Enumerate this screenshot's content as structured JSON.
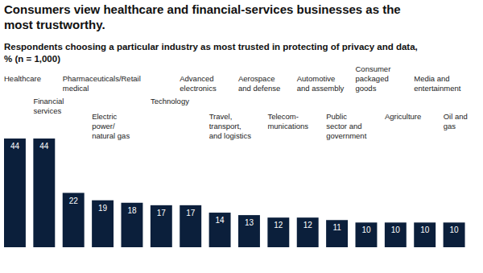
{
  "chart_data": {
    "type": "bar",
    "title": "Consumers view healthcare and financial-services businesses as the\nmost trustworthy.",
    "subtitle": "Respondents choosing a particular industry as most trusted in protecting of privacy and data,\n% (n = 1,000)",
    "categories": [
      "Healthcare",
      "Financial\nservices",
      "Pharmaceuticals/\nmedical",
      "Electric\npower/\nnatural gas",
      "Retail",
      "Technology",
      "Advanced\nelectronics",
      "Travel,\ntransport,\nand logistics",
      "Aerospace\nand defense",
      "Telecom-\nmunications",
      "Automotive\nand assembly",
      "Public\nsector and\ngovernment",
      "Consumer\npackaged\ngoods",
      "Agriculture",
      "Media and\nentertainment",
      "Oil and\ngas"
    ],
    "values": [
      44,
      44,
      22,
      19,
      18,
      17,
      17,
      14,
      13,
      12,
      12,
      11,
      10,
      10,
      10,
      10
    ],
    "color": "#0b1f3b",
    "ylim": [
      0,
      44
    ],
    "data_labels": true,
    "tick_labels": false,
    "grid": false
  }
}
